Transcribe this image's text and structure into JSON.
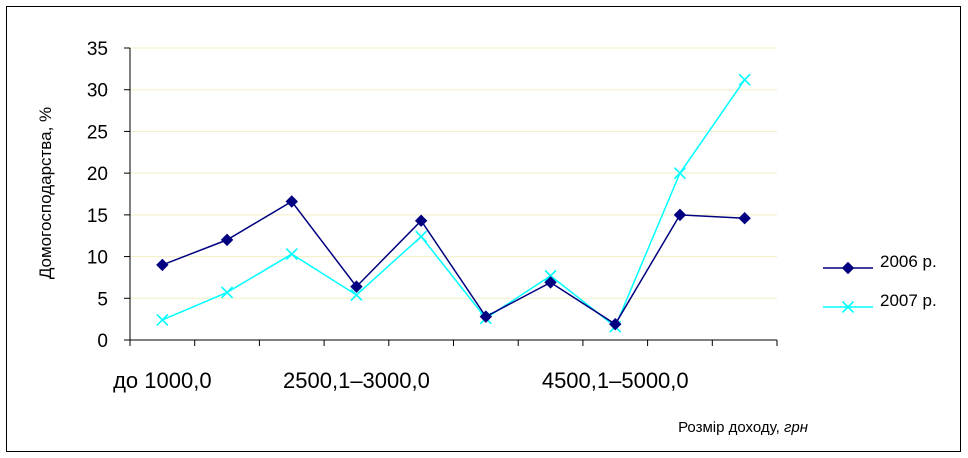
{
  "chart_data": {
    "type": "line",
    "ylabel": "Домогосподарства, %",
    "xlabel": "Розмір доходу,",
    "xlabel_unit": "грн",
    "ylim": [
      0,
      35
    ],
    "yticks": [
      0,
      5,
      10,
      15,
      20,
      25,
      30,
      35
    ],
    "category_count": 10,
    "category_labels": [
      {
        "index": 0,
        "label": "до 1000,0"
      },
      {
        "index": 3,
        "label": "2500,1–3000,0"
      },
      {
        "index": 7,
        "label": "4500,1–5000,0"
      }
    ],
    "grid": "horizontal",
    "legend_position": "right",
    "series": [
      {
        "name": "2006 р.",
        "color": "#000080",
        "marker": "diamond",
        "values": [
          9.0,
          12.0,
          16.6,
          6.4,
          14.3,
          2.8,
          6.9,
          1.9,
          15.0,
          14.6
        ]
      },
      {
        "name": "2007 р.",
        "color": "#00FFFF",
        "marker": "x",
        "values": [
          2.4,
          5.7,
          10.3,
          5.4,
          12.4,
          2.6,
          7.7,
          1.6,
          20.0,
          31.2
        ]
      }
    ]
  }
}
